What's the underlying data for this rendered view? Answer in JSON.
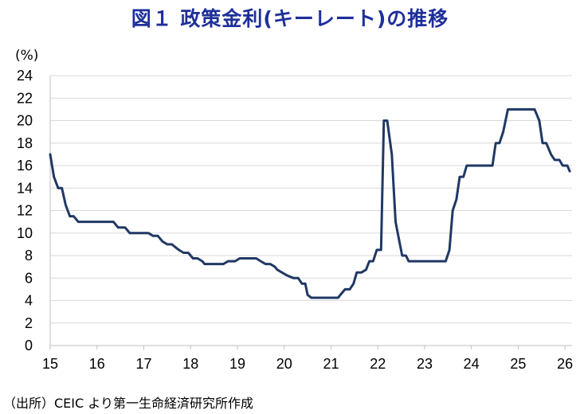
{
  "title": "図１ 政策金利(キーレート)の推移",
  "source": "（出所）CEIC より第一生命経済研究所作成",
  "colors": {
    "line": "#203864",
    "grid": "#d9d9d9",
    "title": "#1f2f9a"
  },
  "chart_data": {
    "type": "line",
    "title": "図１ 政策金利(キーレート)の推移",
    "ylabel": "(%)",
    "xlabel": "",
    "ylim": [
      0,
      24
    ],
    "xlim": [
      15,
      26.15
    ],
    "y_ticks": [
      0,
      2,
      4,
      6,
      8,
      10,
      12,
      14,
      16,
      18,
      20,
      22,
      24
    ],
    "x_ticks": [
      15,
      16,
      17,
      18,
      19,
      20,
      21,
      22,
      23,
      24,
      25,
      26
    ],
    "x_tick_labels": [
      "15",
      "16",
      "17",
      "18",
      "19",
      "20",
      "21",
      "22",
      "23",
      "24",
      "25",
      "26"
    ],
    "y_tick_labels": [
      "0",
      "2",
      "4",
      "6",
      "8",
      "10",
      "12",
      "14",
      "16",
      "18",
      "20",
      "22",
      "24"
    ],
    "grid": true,
    "legend": "none",
    "series": [
      {
        "points": [
          [
            15.0,
            17.0
          ],
          [
            15.08,
            15.0
          ],
          [
            15.17,
            14.0
          ],
          [
            15.25,
            14.0
          ],
          [
            15.33,
            12.5
          ],
          [
            15.42,
            11.5
          ],
          [
            15.5,
            11.5
          ],
          [
            15.6,
            11.0
          ],
          [
            16.0,
            11.0
          ],
          [
            16.35,
            11.0
          ],
          [
            16.45,
            10.5
          ],
          [
            16.6,
            10.5
          ],
          [
            16.7,
            10.0
          ],
          [
            17.1,
            10.0
          ],
          [
            17.2,
            9.75
          ],
          [
            17.3,
            9.75
          ],
          [
            17.4,
            9.25
          ],
          [
            17.5,
            9.0
          ],
          [
            17.6,
            9.0
          ],
          [
            17.75,
            8.5
          ],
          [
            17.85,
            8.25
          ],
          [
            17.95,
            8.25
          ],
          [
            18.05,
            7.75
          ],
          [
            18.15,
            7.75
          ],
          [
            18.25,
            7.5
          ],
          [
            18.3,
            7.25
          ],
          [
            18.7,
            7.25
          ],
          [
            18.8,
            7.5
          ],
          [
            18.95,
            7.5
          ],
          [
            19.05,
            7.75
          ],
          [
            19.4,
            7.75
          ],
          [
            19.5,
            7.5
          ],
          [
            19.6,
            7.25
          ],
          [
            19.7,
            7.25
          ],
          [
            19.8,
            7.0
          ],
          [
            19.85,
            6.75
          ],
          [
            19.95,
            6.5
          ],
          [
            20.05,
            6.25
          ],
          [
            20.2,
            6.0
          ],
          [
            20.3,
            6.0
          ],
          [
            20.38,
            5.5
          ],
          [
            20.45,
            5.5
          ],
          [
            20.5,
            4.5
          ],
          [
            20.58,
            4.25
          ],
          [
            21.15,
            4.25
          ],
          [
            21.2,
            4.5
          ],
          [
            21.3,
            5.0
          ],
          [
            21.4,
            5.0
          ],
          [
            21.48,
            5.5
          ],
          [
            21.55,
            6.5
          ],
          [
            21.65,
            6.5
          ],
          [
            21.75,
            6.75
          ],
          [
            21.82,
            7.5
          ],
          [
            21.9,
            7.5
          ],
          [
            21.98,
            8.5
          ],
          [
            22.07,
            8.5
          ],
          [
            22.13,
            20.0
          ],
          [
            22.2,
            20.0
          ],
          [
            22.3,
            17.0
          ],
          [
            22.38,
            11.0
          ],
          [
            22.45,
            9.5
          ],
          [
            22.52,
            8.0
          ],
          [
            22.6,
            8.0
          ],
          [
            22.66,
            7.5
          ],
          [
            23.45,
            7.5
          ],
          [
            23.53,
            8.5
          ],
          [
            23.6,
            12.0
          ],
          [
            23.68,
            13.0
          ],
          [
            23.75,
            15.0
          ],
          [
            23.83,
            15.0
          ],
          [
            23.9,
            16.0
          ],
          [
            24.45,
            16.0
          ],
          [
            24.52,
            18.0
          ],
          [
            24.6,
            18.0
          ],
          [
            24.68,
            19.0
          ],
          [
            24.78,
            21.0
          ],
          [
            25.35,
            21.0
          ],
          [
            25.45,
            20.0
          ],
          [
            25.52,
            18.0
          ],
          [
            25.6,
            18.0
          ],
          [
            25.7,
            17.0
          ],
          [
            25.78,
            16.5
          ],
          [
            25.88,
            16.5
          ],
          [
            25.95,
            16.0
          ],
          [
            26.05,
            16.0
          ],
          [
            26.1,
            15.5
          ]
        ]
      }
    ]
  }
}
